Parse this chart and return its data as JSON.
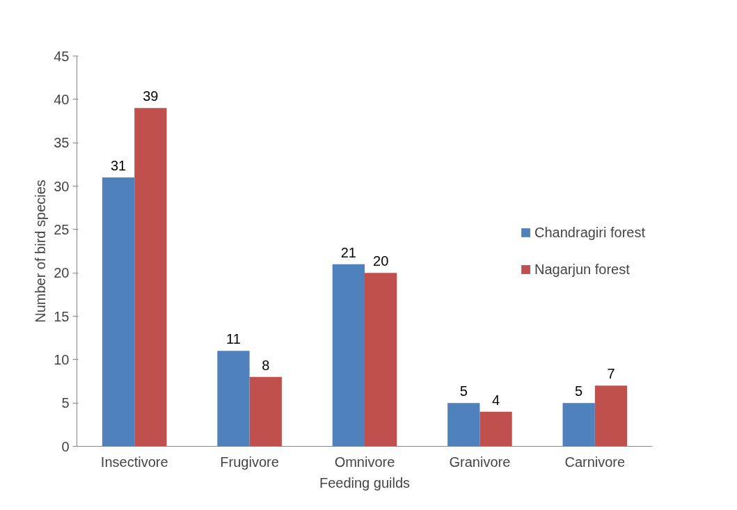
{
  "chart_data": {
    "type": "bar",
    "xlabel": "Feeding guilds",
    "ylabel": "Number of bird species",
    "categories": [
      "Insectivore",
      "Frugivore",
      "Omnivore",
      "Granivore",
      "Carnivore"
    ],
    "series": [
      {
        "name": "Chandragiri forest",
        "color": "#4f81bd",
        "values": [
          31,
          11,
          21,
          5,
          5
        ]
      },
      {
        "name": "Nagarjun forest",
        "color": "#c0504d",
        "values": [
          39,
          8,
          20,
          4,
          7
        ]
      }
    ],
    "ylim": [
      0,
      45
    ],
    "yticks": [
      0,
      5,
      10,
      15,
      20,
      25,
      30,
      35,
      40,
      45
    ],
    "grid": false,
    "legend": "right",
    "data_labels": true
  }
}
